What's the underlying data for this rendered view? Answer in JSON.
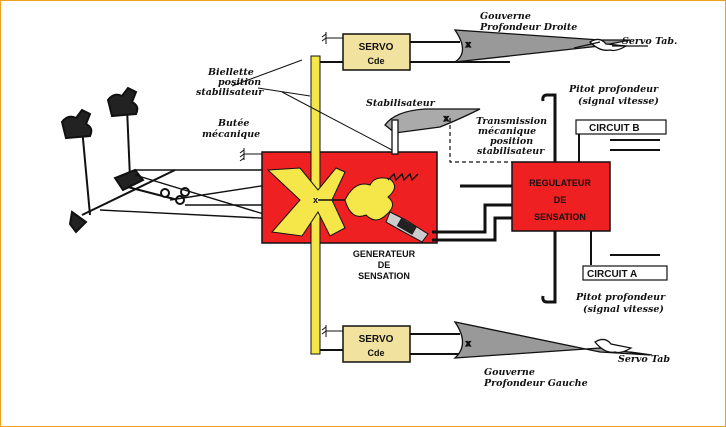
{
  "colors": {
    "red": "#ee2022",
    "yellow": "#f5e64a",
    "servo": "#f2e2a0",
    "line": "#111111",
    "frame": "#f0a020"
  },
  "labels": {
    "gouverne_droite_1": "Gouverne",
    "gouverne_droite_2": "Profondeur Droite",
    "servo_tab_top": "Servo Tab.",
    "biellette_1": "Biellette",
    "biellette_2": "position",
    "biellette_3": "stabilisateur",
    "pitot_top_1": "Pitot profondeur",
    "pitot_top_2": "(signal vitesse)",
    "stabilisateur": "Stabilisateur",
    "transmission_1": "Transmission",
    "transmission_2": "mécanique",
    "transmission_3": "position",
    "transmission_4": "stabilisateur",
    "butee_1": "Butée",
    "butee_2": "mécanique",
    "circuit_b": "CIRCUIT B",
    "circuit_a": "CIRCUIT A",
    "regulateur_1": "REGULATEUR",
    "regulateur_2": "DE",
    "regulateur_3": "SENSATION",
    "generateur_1": "GENERATEUR",
    "generateur_2": "DE",
    "generateur_3": "SENSATION",
    "servo_top": "SERVO",
    "servo_top_sub": "Cde",
    "servo_bottom": "SERVO",
    "servo_bottom_sub": "Cde",
    "pitot_bottom_1": "Pitot profondeur",
    "pitot_bottom_2": "(signal vitesse)",
    "servo_tab_bottom": "Servo Tab",
    "gouverne_gauche_1": "Gouverne",
    "gouverne_gauche_2": "Profondeur Gauche"
  }
}
